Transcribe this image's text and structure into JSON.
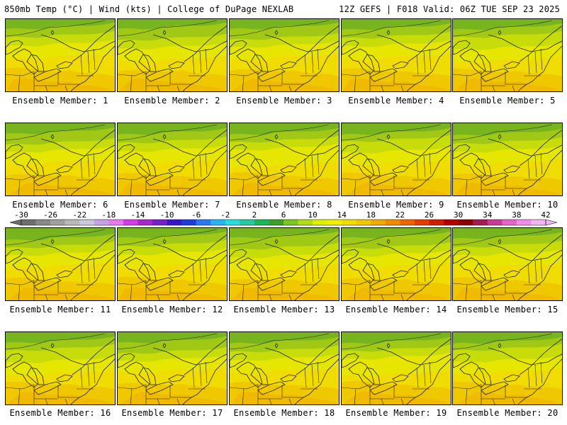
{
  "header": {
    "left": "850mb Temp (°C) | Wind (kts) | College of DuPage NEXLAB",
    "right": "12Z GEFS | F018 Valid: 06Z TUE SEP 23 2025"
  },
  "members": [
    {
      "label": "Ensemble Member: 1"
    },
    {
      "label": "Ensemble Member: 2"
    },
    {
      "label": "Ensemble Member: 3"
    },
    {
      "label": "Ensemble Member: 4"
    },
    {
      "label": "Ensemble Member: 5"
    },
    {
      "label": "Ensemble Member: 6"
    },
    {
      "label": "Ensemble Member: 7"
    },
    {
      "label": "Ensemble Member: 8"
    },
    {
      "label": "Ensemble Member: 9"
    },
    {
      "label": "Ensemble Member: 10"
    },
    {
      "label": "Ensemble Member: 11"
    },
    {
      "label": "Ensemble Member: 12"
    },
    {
      "label": "Ensemble Member: 13"
    },
    {
      "label": "Ensemble Member: 14"
    },
    {
      "label": "Ensemble Member: 15"
    },
    {
      "label": "Ensemble Member: 16"
    },
    {
      "label": "Ensemble Member: 17"
    },
    {
      "label": "Ensemble Member: 18"
    },
    {
      "label": "Ensemble Member: 19"
    },
    {
      "label": "Ensemble Member: 20"
    }
  ],
  "colorbar": {
    "ticks": [
      "-30",
      "-26",
      "-22",
      "-18",
      "-14",
      "-10",
      "-6",
      "-2",
      "2",
      "6",
      "10",
      "14",
      "18",
      "22",
      "26",
      "30",
      "34",
      "38",
      "42"
    ],
    "colors": [
      "#6e6e6e",
      "#888888",
      "#a0a0a0",
      "#b8b8b8",
      "#ccc8dc",
      "#c8a0e6",
      "#e678f0",
      "#d43ce6",
      "#a828c8",
      "#7820c8",
      "#3c14c8",
      "#1e3cdc",
      "#2878f0",
      "#28b4f0",
      "#28dcdc",
      "#28c8a0",
      "#1eb45a",
      "#3ca028",
      "#78c81e",
      "#b4dc14",
      "#dcf000",
      "#f0f000",
      "#f0dc00",
      "#f0c800",
      "#f0aa00",
      "#f08c00",
      "#f06400",
      "#e63c00",
      "#d21e00",
      "#b40000",
      "#8c0000",
      "#a01e50",
      "#c83c96",
      "#e664c8",
      "#f08ce6",
      "#f0b4f0"
    ]
  }
}
